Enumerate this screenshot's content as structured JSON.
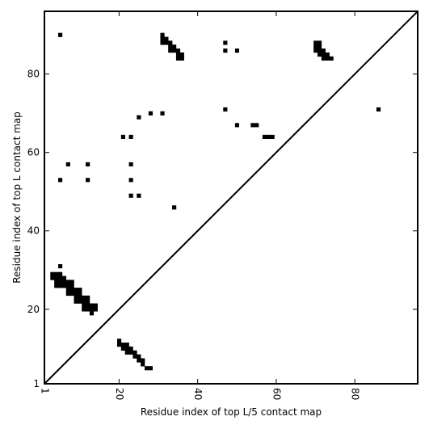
{
  "chart_data": {
    "type": "heatmap",
    "title": "",
    "xlabel": "Residue index of top L/5 contact map",
    "ylabel": "Residue index of top L contact map",
    "xlim": [
      1,
      96
    ],
    "ylim": [
      1,
      96
    ],
    "x_ticks": [
      1,
      20,
      40,
      60,
      80
    ],
    "y_ticks": [
      1,
      20,
      40,
      60,
      80
    ],
    "grid": false,
    "diagonal": true,
    "colors": {
      "contact": "#000000",
      "background": "#ffffff",
      "frame": "#000000"
    },
    "upper_contacts": [
      [
        5,
        90
      ],
      [
        31,
        90
      ],
      [
        31,
        89
      ],
      [
        32,
        89
      ],
      [
        31,
        88
      ],
      [
        32,
        88
      ],
      [
        33,
        88
      ],
      [
        33,
        87
      ],
      [
        34,
        87
      ],
      [
        33,
        86
      ],
      [
        34,
        86
      ],
      [
        35,
        86
      ],
      [
        35,
        85
      ],
      [
        36,
        85
      ],
      [
        35,
        84
      ],
      [
        36,
        84
      ],
      [
        47,
        88
      ],
      [
        47,
        86
      ],
      [
        50,
        86
      ],
      [
        70,
        88
      ],
      [
        71,
        88
      ],
      [
        70,
        87
      ],
      [
        71,
        87
      ],
      [
        70,
        86
      ],
      [
        71,
        86
      ],
      [
        72,
        86
      ],
      [
        71,
        85
      ],
      [
        72,
        85
      ],
      [
        73,
        85
      ],
      [
        72,
        84
      ],
      [
        73,
        84
      ],
      [
        74,
        84
      ],
      [
        86,
        71
      ],
      [
        47,
        71
      ],
      [
        28,
        70
      ],
      [
        31,
        70
      ],
      [
        25,
        69
      ],
      [
        50,
        67
      ],
      [
        54,
        67
      ],
      [
        55,
        67
      ],
      [
        57,
        64
      ],
      [
        58,
        64
      ],
      [
        59,
        64
      ],
      [
        21,
        64
      ],
      [
        23,
        64
      ],
      [
        7,
        57
      ],
      [
        12,
        57
      ],
      [
        23,
        57
      ],
      [
        5,
        53
      ],
      [
        12,
        53
      ],
      [
        23,
        53
      ],
      [
        23,
        49
      ],
      [
        25,
        49
      ],
      [
        34,
        46
      ],
      [
        5,
        31
      ],
      [
        3,
        29
      ],
      [
        4,
        29
      ],
      [
        5,
        29
      ],
      [
        3,
        28
      ],
      [
        4,
        28
      ],
      [
        5,
        28
      ],
      [
        6,
        28
      ],
      [
        4,
        27
      ],
      [
        5,
        27
      ],
      [
        6,
        27
      ],
      [
        7,
        27
      ],
      [
        8,
        27
      ],
      [
        4,
        26
      ],
      [
        5,
        26
      ],
      [
        6,
        26
      ],
      [
        7,
        26
      ],
      [
        8,
        26
      ],
      [
        7,
        25
      ],
      [
        8,
        25
      ],
      [
        9,
        25
      ],
      [
        10,
        25
      ],
      [
        7,
        24
      ],
      [
        8,
        24
      ],
      [
        9,
        24
      ],
      [
        10,
        24
      ],
      [
        9,
        23
      ],
      [
        10,
        23
      ],
      [
        11,
        23
      ],
      [
        12,
        23
      ],
      [
        9,
        22
      ],
      [
        10,
        22
      ],
      [
        11,
        22
      ],
      [
        12,
        22
      ],
      [
        11,
        21
      ],
      [
        12,
        21
      ],
      [
        13,
        21
      ],
      [
        14,
        21
      ],
      [
        11,
        20
      ],
      [
        12,
        20
      ],
      [
        13,
        20
      ],
      [
        14,
        20
      ],
      [
        13,
        19
      ]
    ],
    "lower_contacts": [
      [
        20,
        12
      ],
      [
        20,
        11
      ],
      [
        21,
        11
      ],
      [
        22,
        11
      ],
      [
        21,
        10
      ],
      [
        22,
        10
      ],
      [
        23,
        10
      ],
      [
        22,
        9
      ],
      [
        23,
        9
      ],
      [
        24,
        9
      ],
      [
        24,
        8
      ],
      [
        25,
        8
      ],
      [
        25,
        7
      ],
      [
        26,
        7
      ],
      [
        26,
        6
      ],
      [
        27,
        5
      ],
      [
        28,
        5
      ]
    ]
  }
}
